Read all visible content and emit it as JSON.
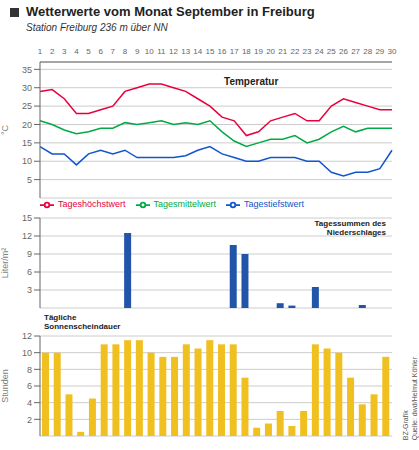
{
  "chart_data": [
    {
      "type": "line",
      "title": "Wetterwerte vom Monat September in Freiburg",
      "subtitle": "Station Freiburg 236 m über NN",
      "categories": [
        1,
        2,
        3,
        4,
        5,
        6,
        7,
        8,
        9,
        10,
        11,
        12,
        13,
        14,
        15,
        16,
        17,
        18,
        19,
        20,
        21,
        22,
        23,
        24,
        25,
        26,
        27,
        28,
        29,
        30
      ],
      "series": [
        {
          "name": "Tageshöchstwert",
          "color": "#e8003d",
          "values": [
            29,
            29.5,
            27,
            23,
            23,
            24,
            25,
            29,
            30,
            31,
            31,
            30,
            29,
            27,
            25,
            22,
            21,
            17,
            18,
            21,
            22,
            23,
            21,
            21,
            25,
            27,
            26,
            25,
            24,
            24
          ]
        },
        {
          "name": "Tagesmittelwert",
          "color": "#00aa44",
          "values": [
            21,
            20,
            18.5,
            17.5,
            18,
            19,
            19,
            20.5,
            20,
            20.5,
            21,
            20,
            20.5,
            20,
            21,
            18,
            15.5,
            14,
            15,
            16,
            16,
            17,
            15,
            16,
            18,
            19.5,
            18,
            19,
            19,
            19
          ]
        },
        {
          "name": "Tagestiefstwert",
          "color": "#1155cc",
          "values": [
            14,
            12,
            12,
            9,
            12,
            13,
            12,
            13,
            11,
            11,
            11,
            11,
            11.5,
            13,
            14,
            12,
            11,
            10,
            10,
            11,
            11,
            11,
            10,
            10,
            7,
            6,
            7,
            7,
            8,
            13
          ]
        }
      ],
      "ylabel": "°C",
      "ylim": [
        0,
        37
      ],
      "yticks": [
        5,
        10,
        15,
        20,
        25,
        30,
        35
      ],
      "grid": true,
      "legend": "lower left",
      "annotations": [
        "Temperatur"
      ]
    },
    {
      "type": "bar",
      "categories": [
        1,
        2,
        3,
        4,
        5,
        6,
        7,
        8,
        9,
        10,
        11,
        12,
        13,
        14,
        15,
        16,
        17,
        18,
        19,
        20,
        21,
        22,
        23,
        24,
        25,
        26,
        27,
        28,
        29,
        30
      ],
      "values": [
        0,
        0,
        0,
        0,
        0,
        0,
        0,
        12.5,
        0,
        0,
        0,
        0,
        0,
        0,
        0,
        0,
        10.5,
        9,
        0,
        0,
        0.8,
        0.4,
        0,
        3.5,
        0,
        0,
        0,
        0.5,
        0,
        0
      ],
      "color": "#2255aa",
      "ylabel": "Liter/m²",
      "ylim": [
        0,
        15
      ],
      "yticks": [
        3,
        6,
        9,
        12,
        15
      ],
      "grid": true,
      "tick_labels": "y",
      "annotations": [
        "Tagessummen des\nNiederschlages"
      ]
    },
    {
      "type": "bar",
      "categories": [
        1,
        2,
        3,
        4,
        5,
        6,
        7,
        8,
        9,
        10,
        11,
        12,
        13,
        14,
        15,
        16,
        17,
        18,
        19,
        20,
        21,
        22,
        23,
        24,
        25,
        26,
        27,
        28,
        29,
        30
      ],
      "values": [
        10,
        10,
        5,
        0.5,
        4.5,
        11,
        11,
        11.5,
        11.5,
        10,
        9.5,
        9.5,
        11,
        10.5,
        11.5,
        11,
        11,
        7,
        1,
        1.5,
        3,
        1.2,
        3,
        11,
        10.5,
        10,
        7,
        3.8,
        5,
        9.5
      ],
      "color": "#f0c020",
      "ylabel": "Stunden",
      "ylim": [
        0,
        12
      ],
      "yticks": [
        2,
        4,
        6,
        8,
        10,
        12
      ],
      "grid": true,
      "tick_labels": "y",
      "annotations": [
        "Tägliche\nSonnenscheindauer",
        "Quelle: dwd/Helmut Köhler",
        "BZ-Grafik"
      ]
    }
  ]
}
